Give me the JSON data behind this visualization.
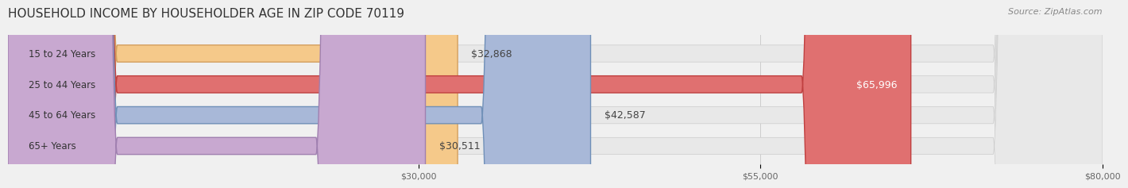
{
  "title": "HOUSEHOLD INCOME BY HOUSEHOLDER AGE IN ZIP CODE 70119",
  "source": "Source: ZipAtlas.com",
  "categories": [
    "15 to 24 Years",
    "25 to 44 Years",
    "45 to 64 Years",
    "65+ Years"
  ],
  "values": [
    32868,
    65996,
    42587,
    30511
  ],
  "labels": [
    "$32,868",
    "$65,996",
    "$42,587",
    "$30,511"
  ],
  "bar_colors": [
    "#f5c98a",
    "#e07070",
    "#a8b8d8",
    "#c8a8d0"
  ],
  "bar_edge_colors": [
    "#d4a060",
    "#c04040",
    "#7090b8",
    "#a080b0"
  ],
  "bg_color": "#f0f0f0",
  "bar_bg_color": "#e8e8e8",
  "xmin": 0,
  "xmax": 80000,
  "xticks": [
    30000,
    55000,
    80000
  ],
  "xtick_labels": [
    "$30,000",
    "$55,000",
    "$80,000"
  ],
  "title_fontsize": 11,
  "source_fontsize": 8,
  "label_fontsize": 9,
  "category_fontsize": 8.5
}
